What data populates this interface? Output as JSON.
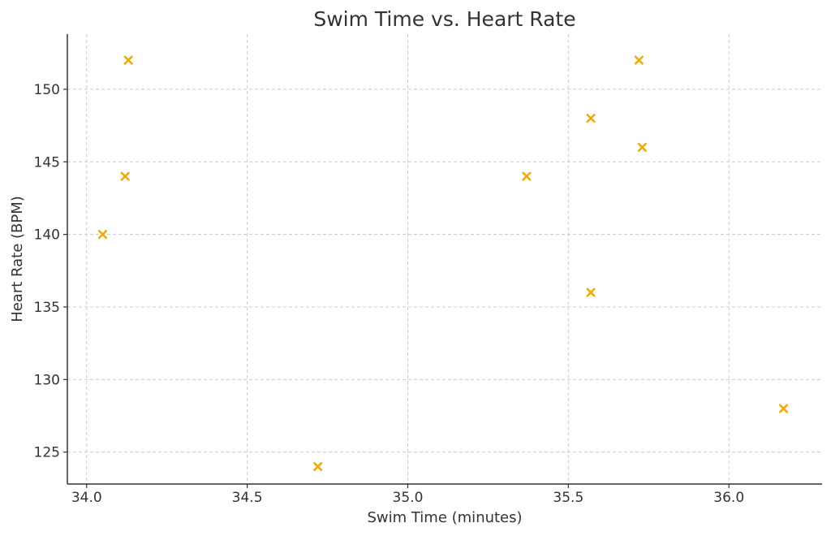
{
  "chart_data": {
    "type": "scatter",
    "title": "Swim Time vs. Heart Rate",
    "xlabel": "Swim Time (minutes)",
    "ylabel": "Heart Rate (BPM)",
    "xlim": [
      33.94,
      36.29
    ],
    "ylim": [
      122.8,
      153.8
    ],
    "xticks": [
      34.0,
      34.5,
      35.0,
      35.5,
      36.0
    ],
    "xtick_labels": [
      "34.0",
      "34.5",
      "35.0",
      "35.5",
      "36.0"
    ],
    "yticks": [
      125,
      130,
      135,
      140,
      145,
      150
    ],
    "ytick_labels": [
      "125",
      "130",
      "135",
      "140",
      "145",
      "150"
    ],
    "grid": true,
    "marker": "x",
    "color": "#f5a800",
    "series": [
      {
        "name": "Swim Time vs. Heart Rate",
        "points": [
          {
            "x": 34.05,
            "y": 140
          },
          {
            "x": 34.12,
            "y": 144
          },
          {
            "x": 34.13,
            "y": 152
          },
          {
            "x": 34.72,
            "y": 124
          },
          {
            "x": 35.37,
            "y": 144
          },
          {
            "x": 35.57,
            "y": 148
          },
          {
            "x": 35.57,
            "y": 136
          },
          {
            "x": 35.72,
            "y": 152
          },
          {
            "x": 35.73,
            "y": 146
          },
          {
            "x": 36.17,
            "y": 128
          }
        ]
      }
    ]
  }
}
